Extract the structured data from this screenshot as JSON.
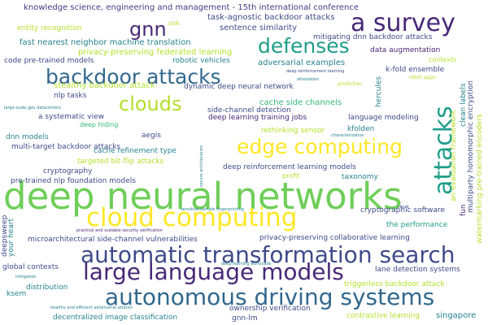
{
  "palette": {
    "dark_purple": "#482878",
    "indigo": "#3e4a89",
    "blue": "#31688e",
    "teal": "#26828e",
    "sea_green": "#1f9e89",
    "green": "#35b779",
    "lime": "#6ece58",
    "yellow_green": "#b5de2b",
    "yellow": "#fde725",
    "deep_indigo": "#443983"
  },
  "words": [
    {
      "text": "deep neural networks",
      "color": "#6ece58"
    },
    {
      "text": "automatic transformation search",
      "color": "#3e4a89"
    },
    {
      "text": "large language models",
      "color": "#482878"
    },
    {
      "text": "autonomous driving systems",
      "color": "#31688e"
    },
    {
      "text": "cloud computing",
      "color": "#fde725"
    },
    {
      "text": "a survey",
      "color": "#482878"
    },
    {
      "text": "backdoor attacks",
      "color": "#31688e"
    },
    {
      "text": "edge computing",
      "color": "#fde725"
    },
    {
      "text": "attacks",
      "color": "#1f9e89"
    },
    {
      "text": "defenses",
      "color": "#1f9e89"
    },
    {
      "text": "clouds",
      "color": "#b5de2b"
    },
    {
      "text": "gnn",
      "color": "#482878"
    },
    {
      "text": "knowledge science, engineering and management - 15th international conference",
      "color": "#443983"
    },
    {
      "text": "task-agnostic backdoor attacks",
      "color": "#3e4a89"
    },
    {
      "text": "entity recognition",
      "color": "#b5de2b"
    },
    {
      "text": "sok",
      "color": "#b5de2b"
    },
    {
      "text": "sentence similarity",
      "color": "#3e4a89"
    },
    {
      "text": "mitigating dnn backdoor attacks",
      "color": "#3e4a89"
    },
    {
      "text": "fast nearest neighbor machine translation",
      "color": "#26828e"
    },
    {
      "text": "privacy-preserving federated learning",
      "color": "#b5de2b"
    },
    {
      "text": "data augmentation",
      "color": "#482878"
    },
    {
      "text": "code pre-trained models",
      "color": "#3e4a89"
    },
    {
      "text": "robotic vehicles",
      "color": "#26828e"
    },
    {
      "text": "adversarial examples",
      "color": "#26828e"
    },
    {
      "text": "contexts",
      "color": "#b5de2b"
    },
    {
      "text": "deep reinforcement learning",
      "color": "#3e4a89"
    },
    {
      "text": "k-fold ensemble",
      "color": "#3e4a89"
    },
    {
      "text": "stealthy backdoor attack",
      "color": "#b5de2b"
    },
    {
      "text": "dynamic deep neural network",
      "color": "#3e4a89"
    },
    {
      "text": "attestation",
      "color": "#26828e"
    },
    {
      "text": "prediction",
      "color": "#b5de2b"
    },
    {
      "text": "robot apps",
      "color": "#b5de2b"
    },
    {
      "text": "nlp tasks",
      "color": "#3e4a89"
    },
    {
      "text": "large-scale gpu datacenters",
      "color": "#26828e"
    },
    {
      "text": "side-channel detection",
      "color": "#3e4a89"
    },
    {
      "text": "cache side channels",
      "color": "#35b779"
    },
    {
      "text": "a systematic view",
      "color": "#3e4a89"
    },
    {
      "text": "deep learning training jobs",
      "color": "#482878"
    },
    {
      "text": "language modeling",
      "color": "#3e4a89"
    },
    {
      "text": "deep hiding",
      "color": "#35b779"
    },
    {
      "text": "rethinking sensor",
      "color": "#b5de2b"
    },
    {
      "text": "kfolden",
      "color": "#26828e"
    },
    {
      "text": "characterization",
      "color": "#26828e"
    },
    {
      "text": "dnn models",
      "color": "#26828e"
    },
    {
      "text": "aegis",
      "color": "#3e4a89"
    },
    {
      "text": "multi-target backdoor attacks",
      "color": "#3e4a89"
    },
    {
      "text": "cache refinement type",
      "color": "#26828e"
    },
    {
      "text": "targeted bit-flip attacks",
      "color": "#b5de2b"
    },
    {
      "text": "cryptography",
      "color": "#3e4a89"
    },
    {
      "text": "deep reinforcement learning models",
      "color": "#3e4a89"
    },
    {
      "text": "profit",
      "color": "#b5de2b"
    },
    {
      "text": "taxonomy",
      "color": "#26828e"
    },
    {
      "text": "pre-trained nlp foundation models",
      "color": "#3e4a89"
    },
    {
      "text": "sensitive-sample fingerprinting",
      "color": "#26828e"
    },
    {
      "text": "cryptographic software",
      "color": "#3e4a89"
    },
    {
      "text": "practical and scalable security verification",
      "color": "#482878"
    },
    {
      "text": "the performance",
      "color": "#1f9e89"
    },
    {
      "text": "microarchitectural side-channel vulnerabilities",
      "color": "#3e4a89"
    },
    {
      "text": "privacy-preserving collaborative learning",
      "color": "#3e4a89"
    },
    {
      "text": "deep learning workloads",
      "color": "#26828e"
    },
    {
      "text": "global contexts",
      "color": "#3e4a89"
    },
    {
      "text": "lane detection systems",
      "color": "#3e4a89"
    },
    {
      "text": "mitigation",
      "color": "#26828e"
    },
    {
      "text": "triggerless backdoor attack",
      "color": "#b5de2b"
    },
    {
      "text": "distribution",
      "color": "#26828e"
    },
    {
      "text": "ksem",
      "color": "#26828e"
    },
    {
      "text": "healthy and efficient adversarial attacks",
      "color": "#26828e"
    },
    {
      "text": "decentralized image classification",
      "color": "#26828e"
    },
    {
      "text": "ownership verification",
      "color": "#3e4a89"
    },
    {
      "text": "contrastive learning",
      "color": "#b5de2b"
    },
    {
      "text": "singapore",
      "color": "#26828e"
    },
    {
      "text": "gnn-lm",
      "color": "#3e4a89"
    },
    {
      "text": "cloud",
      "color": "#3e4a89"
    },
    {
      "text": "deepsweep",
      "color": "#3e4a89"
    },
    {
      "text": "your heart",
      "color": "#26828e"
    },
    {
      "text": "secure architectures",
      "color": "#26828e"
    },
    {
      "text": "hercules",
      "color": "#26828e"
    },
    {
      "text": "clean labels",
      "color": "#26828e"
    },
    {
      "text": "an evaluation framework",
      "color": "#b5de2b"
    },
    {
      "text": "multiparty homomorphic encryption",
      "color": "#3e4a89"
    },
    {
      "text": "watermarking pre-trained encoders",
      "color": "#b5de2b"
    },
    {
      "text": "fun",
      "color": "#482878"
    }
  ]
}
